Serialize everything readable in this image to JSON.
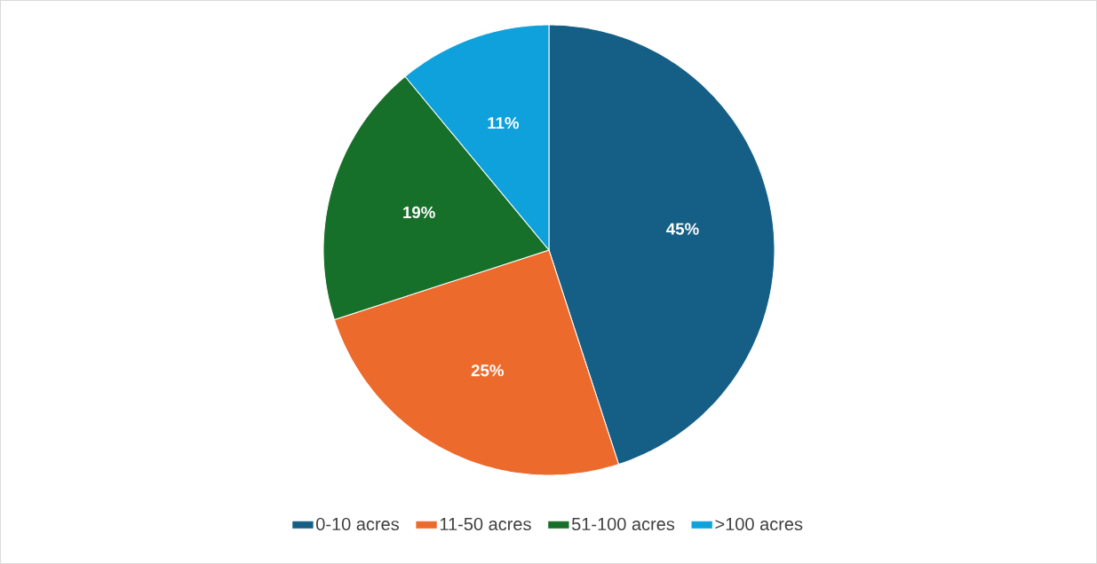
{
  "chart_data": {
    "type": "pie",
    "categories": [
      "0-10 acres",
      "11-50 acres",
      "51-100 acres",
      ">100 acres"
    ],
    "values": [
      45,
      25,
      19,
      11
    ],
    "colors": [
      "#155f86",
      "#ec6a2c",
      "#17702a",
      "#0ea1dc"
    ],
    "value_labels": [
      "45%",
      "25%",
      "19%",
      "11%"
    ],
    "legend": "bottom"
  }
}
